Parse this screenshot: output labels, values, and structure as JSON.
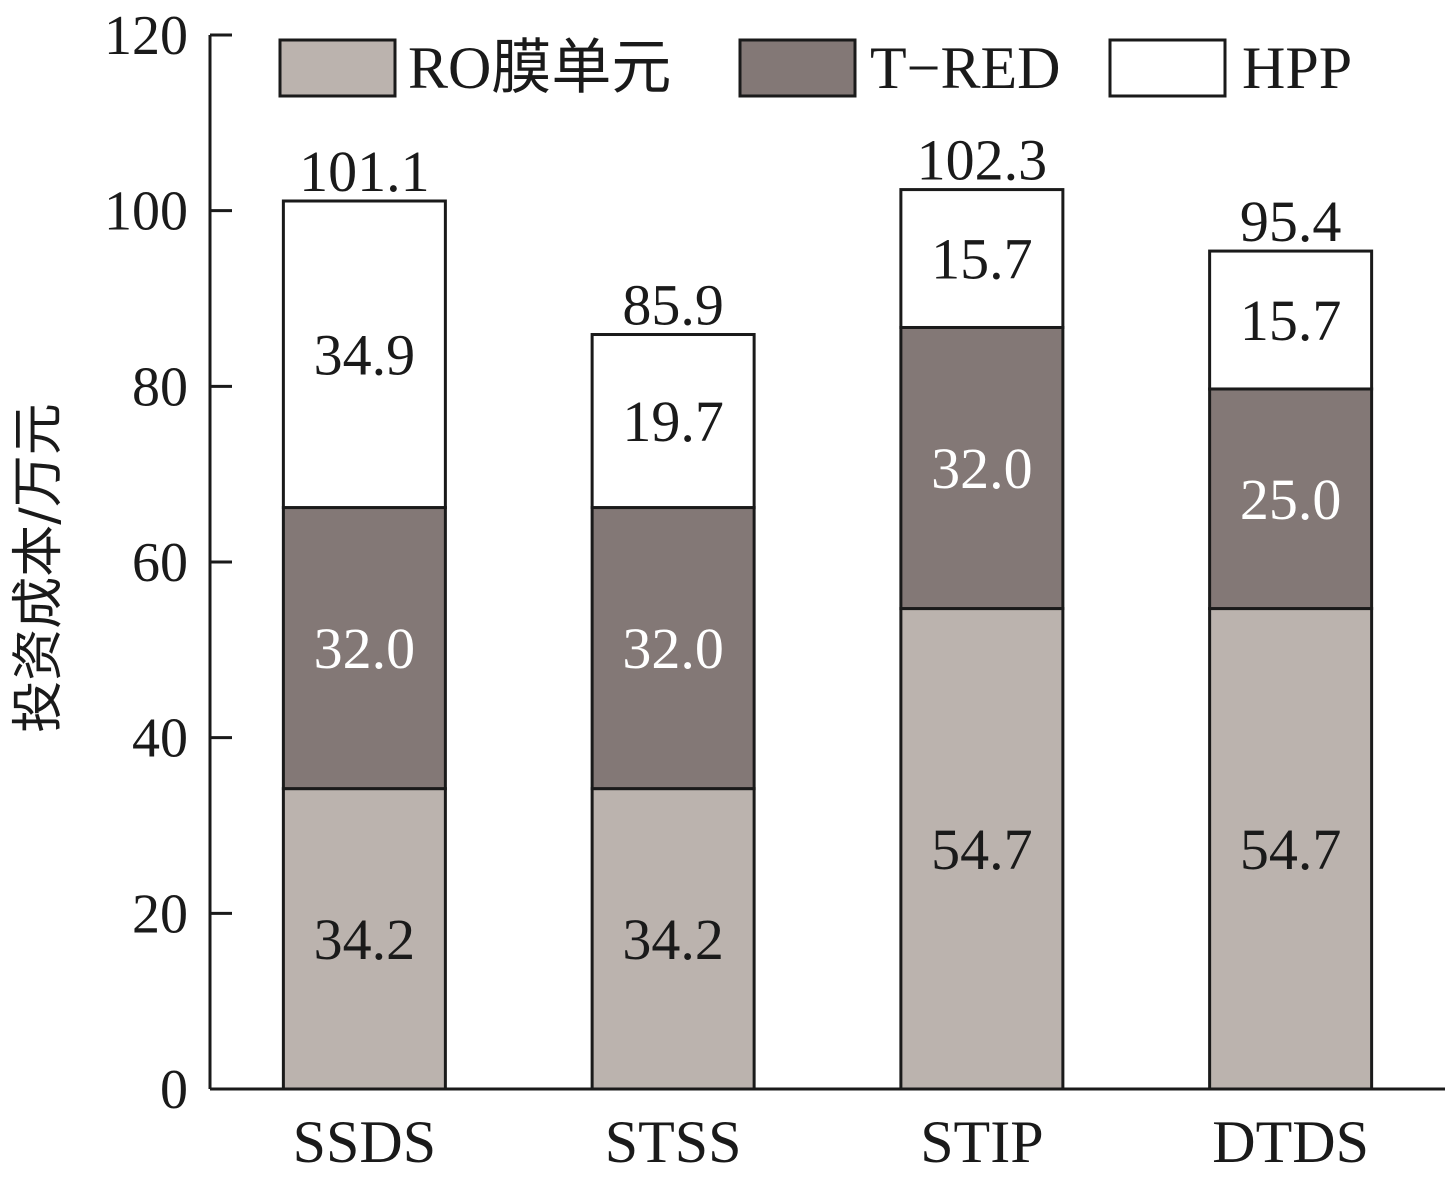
{
  "chart_data": {
    "type": "bar",
    "stacked": true,
    "categories": [
      "SSDS",
      "STSS",
      "STIP",
      "DTDS"
    ],
    "series": [
      {
        "name": "RO膜单元",
        "values": [
          34.2,
          34.2,
          54.7,
          54.7
        ],
        "color": "#bbb3ae",
        "label_color": "#1a1a1a"
      },
      {
        "name": "T−RED",
        "values": [
          32.0,
          32.0,
          32.0,
          25.0
        ],
        "color": "#837876",
        "label_color": "#ffffff"
      },
      {
        "name": "HPP",
        "values": [
          34.9,
          19.7,
          15.7,
          15.7
        ],
        "color": "#ffffff",
        "label_color": "#1a1a1a"
      }
    ],
    "totals": [
      "101.1",
      "85.9",
      "102.3",
      "95.4"
    ],
    "ylabel": "投资成本/万元",
    "xlabel": "",
    "ylim": [
      0,
      120
    ],
    "yticks": [
      0,
      20,
      40,
      60,
      80,
      100,
      120
    ],
    "grid": false,
    "legend_position": "top"
  }
}
